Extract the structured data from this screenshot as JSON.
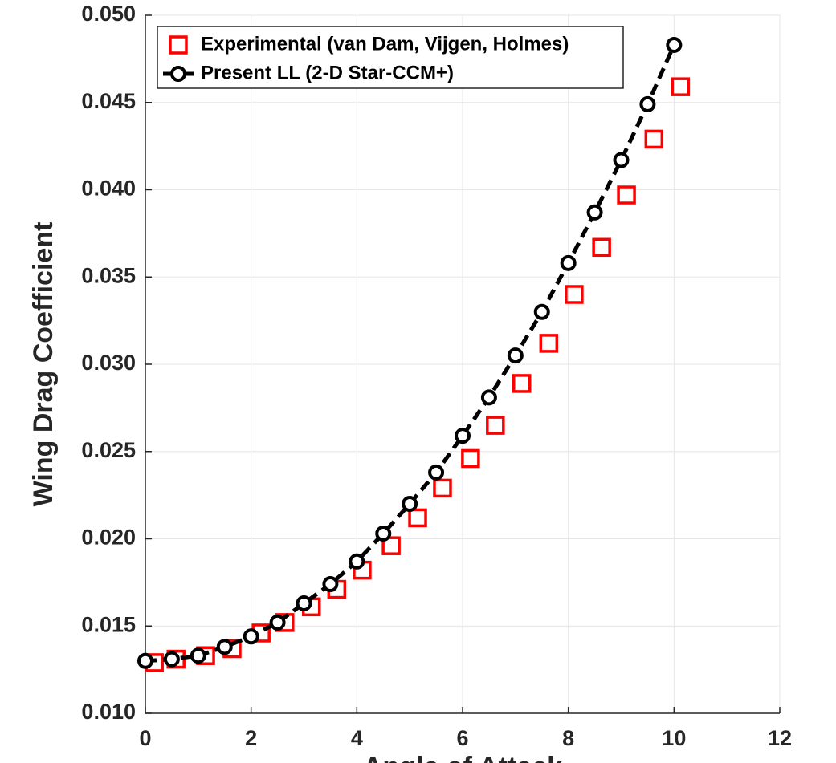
{
  "chart_data": {
    "type": "line",
    "y_label": "Wing Drag Coefficient",
    "x_label": "Angle of Attack",
    "xlim": [
      0,
      12
    ],
    "xticks": [
      0,
      2,
      4,
      6,
      8,
      10,
      12
    ],
    "ylim": [
      0.01,
      0.05
    ],
    "yticks": [
      {
        "value": 0.01,
        "label": "0.010"
      },
      {
        "value": 0.015,
        "label": "0.015"
      },
      {
        "value": 0.02,
        "label": "0.020"
      },
      {
        "value": 0.025,
        "label": "0.025"
      },
      {
        "value": 0.03,
        "label": "0.030"
      },
      {
        "value": 0.035,
        "label": "0.035"
      },
      {
        "value": 0.04,
        "label": "0.040"
      },
      {
        "value": 0.045,
        "label": "0.045"
      },
      {
        "value": 0.05,
        "label": "0.050"
      }
    ],
    "grid": true,
    "legend": "top-left",
    "series": [
      {
        "name": "Experimental (van Dam, Vijgen, Holmes)",
        "color": "#ff0000",
        "marker": "square",
        "line": false,
        "x": [
          0.17,
          0.58,
          1.14,
          1.64,
          2.19,
          2.64,
          3.14,
          3.62,
          4.1,
          4.65,
          5.15,
          5.62,
          6.15,
          6.62,
          7.12,
          7.63,
          8.11,
          8.63,
          9.1,
          9.62,
          10.12
        ],
        "values": [
          0.0129,
          0.0131,
          0.0133,
          0.0137,
          0.0146,
          0.0152,
          0.0161,
          0.0171,
          0.0182,
          0.0196,
          0.0212,
          0.0229,
          0.0246,
          0.0265,
          0.0289,
          0.0312,
          0.034,
          0.0367,
          0.0397,
          0.0429,
          0.0459
        ]
      },
      {
        "name": "Present LL (2-D Star-CCM+)",
        "color": "#000000",
        "marker": "circle",
        "line": true,
        "x": [
          0,
          0.5,
          1,
          1.5,
          2,
          2.5,
          3,
          3.5,
          4,
          4.5,
          5,
          5.5,
          6,
          6.5,
          7,
          7.5,
          8,
          8.5,
          9,
          9.5,
          10
        ],
        "values": [
          0.013,
          0.0131,
          0.0133,
          0.0138,
          0.0144,
          0.0152,
          0.0163,
          0.0174,
          0.0187,
          0.0203,
          0.022,
          0.0238,
          0.0259,
          0.0281,
          0.0305,
          0.033,
          0.0358,
          0.0387,
          0.0417,
          0.0449,
          0.0483
        ]
      }
    ]
  }
}
